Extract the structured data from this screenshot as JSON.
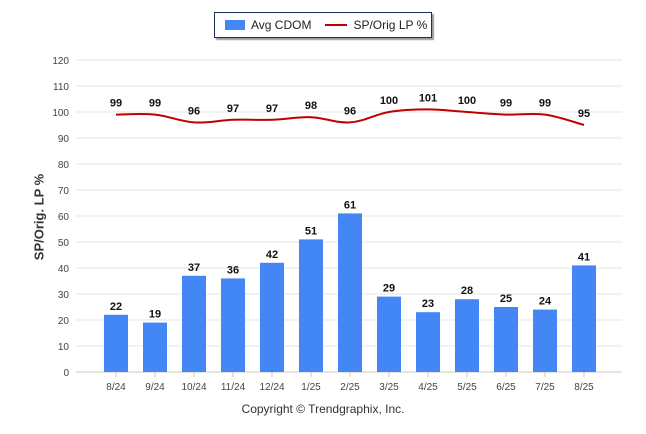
{
  "chart_data": {
    "type": "bar",
    "categories": [
      "8/24",
      "9/24",
      "10/24",
      "11/24",
      "12/24",
      "1/25",
      "2/25",
      "3/25",
      "4/25",
      "5/25",
      "6/25",
      "7/25",
      "8/25"
    ],
    "series": [
      {
        "name": "Avg CDOM",
        "type": "bar",
        "color": "#4287f5",
        "values": [
          22,
          19,
          37,
          36,
          42,
          51,
          61,
          29,
          23,
          28,
          25,
          24,
          41
        ]
      },
      {
        "name": "SP/Orig LP %",
        "type": "line",
        "color": "#c00000",
        "values": [
          99,
          99,
          96,
          97,
          97,
          98,
          96,
          100,
          101,
          100,
          99,
          99,
          95
        ]
      }
    ],
    "ylabel": "SP/Orig. LP %",
    "ylim": [
      0,
      120
    ],
    "yticks": [
      0,
      10,
      20,
      30,
      40,
      50,
      60,
      70,
      80,
      90,
      100,
      110,
      120
    ],
    "grid": true,
    "legend_position": "top-center"
  },
  "footer": "Copyright © Trendgraphix, Inc."
}
